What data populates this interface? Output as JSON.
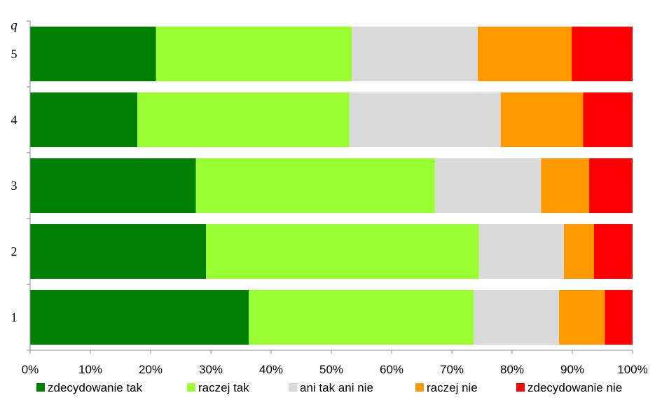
{
  "chart_data": {
    "type": "bar",
    "orientation": "horizontal",
    "stacked": "percent",
    "ylabel": "q",
    "categories": [
      "1",
      "2",
      "3",
      "4",
      "5"
    ],
    "series": [
      {
        "name": "zdecydowanie tak",
        "color": "#008000",
        "values": [
          36.3,
          29.2,
          27.5,
          17.8,
          20.9
        ]
      },
      {
        "name": "raczej tak",
        "color": "#99ff33",
        "values": [
          37.3,
          45.3,
          39.7,
          35.2,
          32.5
        ]
      },
      {
        "name": "ani tak ani nie",
        "color": "#d9d9d9",
        "values": [
          14.2,
          14.1,
          17.6,
          25.1,
          20.9
        ]
      },
      {
        "name": "raczej nie",
        "color": "#ff9900",
        "values": [
          7.6,
          5.0,
          8.0,
          13.7,
          15.6
        ]
      },
      {
        "name": "zdecydowanie nie",
        "color": "#ff0000",
        "values": [
          4.6,
          6.4,
          7.2,
          8.2,
          10.1
        ]
      }
    ],
    "xticks": [
      "0%",
      "10%",
      "20%",
      "30%",
      "40%",
      "50%",
      "60%",
      "70%",
      "80%",
      "90%",
      "100%"
    ],
    "xlim": [
      0,
      100
    ],
    "grid": false,
    "legend_position": "bottom"
  }
}
